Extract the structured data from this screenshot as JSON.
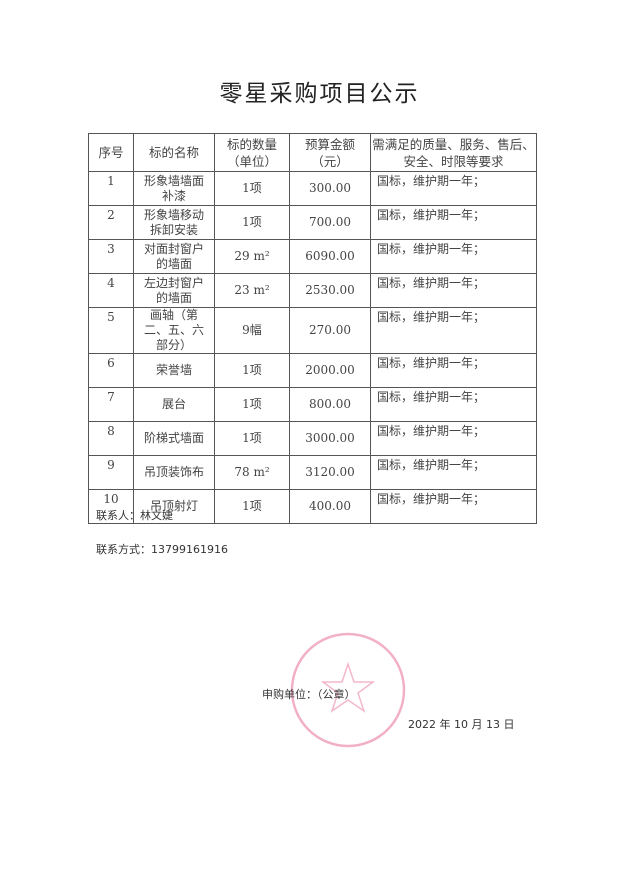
{
  "title": "零星采购项目公示",
  "table": {
    "headers": [
      "序号",
      "标的名称",
      "标的数量（单位）",
      "预算金额（元）",
      "需满足的质量、服务、售后、安全、时限等要求"
    ],
    "header_lines": [
      [
        "序号"
      ],
      [
        "标的名称"
      ],
      [
        "标的数量",
        "（单位）"
      ],
      [
        "预算金额",
        "（元）"
      ],
      [
        "需满足的质量、服务、售后、",
        "安全、时限等要求"
      ]
    ],
    "rows": [
      {
        "no": "1",
        "name": "形象墙墙面补漆",
        "qty": "1项",
        "amount": "300.00",
        "req": "国标，维护期一年；"
      },
      {
        "no": "2",
        "name": "形象墙移动拆卸安装",
        "qty": "1项",
        "amount": "700.00",
        "req": "国标，维护期一年；"
      },
      {
        "no": "3",
        "name": "对面封窗户的墙面",
        "qty": "29 m²",
        "amount": "6090.00",
        "req": "国标，维护期一年；"
      },
      {
        "no": "4",
        "name": "左边封窗户的墙面",
        "qty": "23 m²",
        "amount": "2530.00",
        "req": "国标，维护期一年；"
      },
      {
        "no": "5",
        "name": "画轴（第二、五、六部分）",
        "qty": "9幅",
        "amount": "270.00",
        "req": "国标，维护期一年；"
      },
      {
        "no": "6",
        "name": "荣誉墙",
        "qty": "1项",
        "amount": "2000.00",
        "req": "国标，维护期一年；"
      },
      {
        "no": "7",
        "name": "展台",
        "qty": "1项",
        "amount": "800.00",
        "req": "国标，维护期一年；"
      },
      {
        "no": "8",
        "name": "阶梯式墙面",
        "qty": "1项",
        "amount": "3000.00",
        "req": "国标，维护期一年；"
      },
      {
        "no": "9",
        "name": "吊顶装饰布",
        "qty": "78 m²",
        "amount": "3120.00",
        "req": "国标，维护期一年；"
      },
      {
        "no": "10",
        "name": "吊顶射灯",
        "qty": "1项",
        "amount": "400.00",
        "req": "国标，维护期一年；"
      }
    ]
  },
  "contact_person": "联系人：林文婕",
  "contact_method": "联系方式：13799161916",
  "applicant": "申购单位：（公章）",
  "date": "2022 年 10 月 13  日",
  "stamp_color": "#e8709a"
}
